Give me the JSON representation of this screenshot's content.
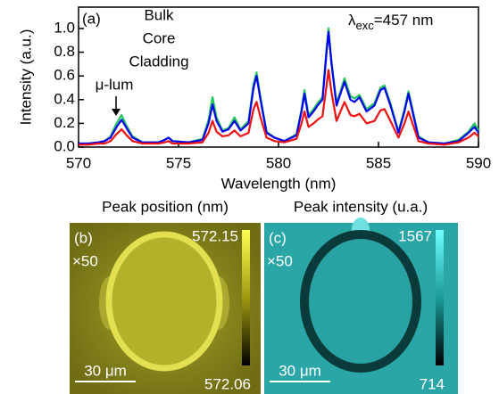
{
  "chart_data": {
    "type": "line",
    "panel_label": "(a)",
    "excitation": {
      "symbol": "λ",
      "sub": "exc",
      "text": "=457 nm"
    },
    "annotation": "μ-lum",
    "xlabel": "Wavelength (nm)",
    "ylabel": "Intensity (a.u.)",
    "xlim": [
      570,
      590
    ],
    "xticks": [
      570,
      575,
      580,
      585,
      590
    ],
    "ylim": [
      0,
      1.18
    ],
    "yticks": [
      {
        "value": 0,
        "label": "0.0"
      },
      {
        "value": 0.2,
        "label": "0.2"
      },
      {
        "value": 0.4,
        "label": "0.4"
      },
      {
        "value": 0.6,
        "label": "0.6"
      },
      {
        "value": 0.8,
        "label": "0.8"
      },
      {
        "value": 1,
        "label": "1.0"
      }
    ],
    "x": [
      570,
      570.5,
      571,
      571.3,
      571.6,
      571.9,
      572.15,
      572.4,
      572.7,
      573.2,
      574,
      574.3,
      574.5,
      574.7,
      575.5,
      576.2,
      576.5,
      576.7,
      576.9,
      577.2,
      577.5,
      577.8,
      578.1,
      578.5,
      578.75,
      578.9,
      579.1,
      579.4,
      579.8,
      580.3,
      580.9,
      581.15,
      581.3,
      581.5,
      581.75,
      581.95,
      582.2,
      582.4,
      582.5,
      582.65,
      582.9,
      583.1,
      583.3,
      583.6,
      583.8,
      584.05,
      584.4,
      584.8,
      585.1,
      585.3,
      585.6,
      586,
      586.3,
      586.5,
      586.7,
      587,
      587.5,
      588.3,
      589,
      589.5,
      589.8,
      590
    ],
    "series": [
      {
        "name": "Bulk",
        "color": "#22c55e",
        "values": [
          0.03,
          0.03,
          0.04,
          0.05,
          0.09,
          0.2,
          0.27,
          0.18,
          0.09,
          0.04,
          0.04,
          0.06,
          0.08,
          0.05,
          0.04,
          0.07,
          0.23,
          0.42,
          0.25,
          0.14,
          0.16,
          0.25,
          0.15,
          0.22,
          0.53,
          0.63,
          0.42,
          0.13,
          0.08,
          0.05,
          0.11,
          0.32,
          0.48,
          0.27,
          0.32,
          0.37,
          0.42,
          0.83,
          1.0,
          0.72,
          0.37,
          0.47,
          0.58,
          0.43,
          0.41,
          0.44,
          0.32,
          0.37,
          0.5,
          0.52,
          0.37,
          0.13,
          0.32,
          0.47,
          0.32,
          0.09,
          0.04,
          0.03,
          0.06,
          0.13,
          0.2,
          0.14
        ]
      },
      {
        "name": "Core",
        "color": "#0000ee",
        "values": [
          0.03,
          0.03,
          0.04,
          0.05,
          0.08,
          0.17,
          0.23,
          0.16,
          0.08,
          0.04,
          0.04,
          0.06,
          0.08,
          0.05,
          0.04,
          0.06,
          0.2,
          0.36,
          0.22,
          0.13,
          0.15,
          0.22,
          0.14,
          0.2,
          0.5,
          0.6,
          0.4,
          0.12,
          0.08,
          0.05,
          0.1,
          0.3,
          0.45,
          0.25,
          0.3,
          0.35,
          0.4,
          0.8,
          0.97,
          0.7,
          0.35,
          0.45,
          0.55,
          0.4,
          0.38,
          0.42,
          0.3,
          0.35,
          0.48,
          0.5,
          0.35,
          0.12,
          0.3,
          0.45,
          0.3,
          0.08,
          0.04,
          0.03,
          0.05,
          0.12,
          0.17,
          0.12
        ]
      },
      {
        "name": "Cladding",
        "color": "#ee1111",
        "values": [
          0.02,
          0.02,
          0.03,
          0.03,
          0.05,
          0.11,
          0.15,
          0.1,
          0.05,
          0.03,
          0.03,
          0.04,
          0.05,
          0.03,
          0.03,
          0.04,
          0.12,
          0.22,
          0.13,
          0.09,
          0.1,
          0.14,
          0.09,
          0.12,
          0.32,
          0.38,
          0.25,
          0.08,
          0.05,
          0.04,
          0.07,
          0.2,
          0.3,
          0.17,
          0.2,
          0.23,
          0.26,
          0.52,
          0.65,
          0.46,
          0.22,
          0.3,
          0.38,
          0.27,
          0.26,
          0.28,
          0.2,
          0.22,
          0.31,
          0.32,
          0.22,
          0.08,
          0.2,
          0.3,
          0.2,
          0.05,
          0.03,
          0.02,
          0.04,
          0.08,
          0.12,
          0.09
        ]
      }
    ]
  },
  "panels": [
    {
      "title": "Peak position (nm)",
      "label": "(b)",
      "scale": "×50",
      "bar": "30 μm",
      "colorbar_max": 572.15,
      "colorbar_min": 572.06
    },
    {
      "title": "Peak intensity (u.a.)",
      "label": "(c)",
      "scale": "×50",
      "bar": "30 μm",
      "colorbar_max": 1567,
      "colorbar_min": 714
    }
  ]
}
